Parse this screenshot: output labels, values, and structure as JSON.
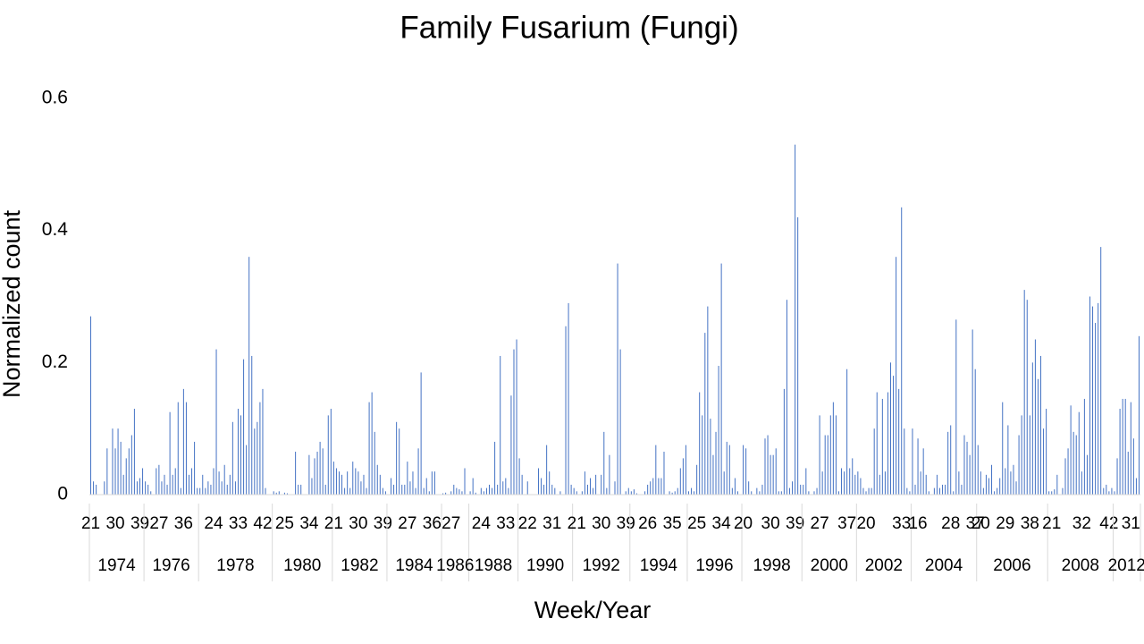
{
  "chart_data": {
    "type": "bar",
    "title": "Family Fusarium (Fungi)",
    "x_label": "Week/Year",
    "y_label": "Normalized count",
    "color": "#4472c4",
    "ylim": [
      0,
      0.6
    ],
    "yticks": [
      0,
      0.2,
      0.4,
      0.6
    ],
    "grid": false,
    "groups": [
      {
        "name": "1974",
        "categories": [
          "21",
          null,
          null,
          null,
          null,
          null,
          null,
          null,
          null,
          "30",
          null,
          null,
          null,
          null,
          null,
          null,
          null,
          null,
          "39",
          null
        ],
        "values": [
          0.27,
          0.02,
          0.015,
          0,
          0,
          0.02,
          0.07,
          0,
          0.1,
          0.07,
          0.1,
          0.08,
          0.03,
          0.055,
          0.07,
          0.09,
          0.13,
          0.02,
          0.025,
          0.04
        ]
      },
      {
        "name": "1976",
        "categories": [
          null,
          null,
          null,
          null,
          null,
          "27",
          null,
          null,
          null,
          null,
          null,
          null,
          null,
          null,
          "36",
          null,
          null,
          null,
          null,
          null
        ],
        "values": [
          0.02,
          0.015,
          0.005,
          0,
          0.04,
          0.045,
          0.02,
          0.03,
          0.015,
          0.125,
          0.03,
          0.04,
          0.14,
          0.01,
          0.16,
          0.14,
          0.03,
          0.04,
          0.08,
          0.01
        ]
      },
      {
        "name": "1978",
        "categories": [
          null,
          null,
          null,
          null,
          null,
          "24",
          null,
          null,
          null,
          null,
          null,
          null,
          null,
          null,
          "33",
          null,
          null,
          null,
          null,
          null,
          null,
          null,
          null,
          "42",
          null,
          null,
          null
        ],
        "values": [
          0.01,
          0.03,
          0.01,
          0.02,
          0.015,
          0.04,
          0.22,
          0.035,
          0.02,
          0.045,
          0.015,
          0.03,
          0.11,
          0.02,
          0.13,
          0.12,
          0.205,
          0.075,
          0.36,
          0.21,
          0.1,
          0.11,
          0.14,
          0.16,
          0.01,
          0,
          0
        ]
      },
      {
        "name": "1980",
        "categories": [
          null,
          null,
          null,
          null,
          "25",
          null,
          null,
          null,
          null,
          null,
          null,
          null,
          null,
          "34",
          null,
          null,
          null,
          null,
          null,
          null,
          null,
          null
        ],
        "values": [
          0.005,
          0.003,
          0.005,
          0,
          0.003,
          0.002,
          0,
          0,
          0.065,
          0.015,
          0.015,
          0,
          0,
          0.06,
          0.025,
          0.055,
          0.065,
          0.08,
          0.07,
          0.015,
          0.12,
          0.13
        ]
      },
      {
        "name": "1982",
        "categories": [
          "21",
          null,
          null,
          null,
          null,
          null,
          null,
          null,
          null,
          "30",
          null,
          null,
          null,
          null,
          null,
          null,
          null,
          null,
          "39",
          null
        ],
        "values": [
          0.05,
          0.04,
          0.035,
          0.03,
          0.01,
          0.035,
          0.01,
          0.05,
          0.04,
          0.035,
          0.02,
          0.03,
          0.01,
          0.14,
          0.155,
          0.095,
          0.045,
          0.03,
          0.01,
          0.005
        ]
      },
      {
        "name": "1984",
        "categories": [
          null,
          null,
          null,
          null,
          null,
          null,
          null,
          "27",
          null,
          null,
          null,
          null,
          null,
          null,
          null,
          null,
          "36",
          null,
          null,
          null
        ],
        "values": [
          0,
          0.025,
          0.015,
          0.11,
          0.1,
          0.015,
          0.015,
          0.05,
          0.02,
          0.035,
          0.01,
          0.07,
          0.185,
          0.01,
          0.025,
          0.005,
          0.035,
          0.035,
          0,
          0
        ]
      },
      {
        "name": "1986",
        "categories": [
          null,
          null,
          null,
          "27",
          null,
          null,
          null,
          null,
          null,
          null
        ],
        "values": [
          0.002,
          0.003,
          0,
          0.005,
          0.015,
          0.01,
          0.008,
          0.005,
          0.04,
          0
        ]
      },
      {
        "name": "1988",
        "categories": [
          null,
          null,
          null,
          null,
          "24",
          null,
          null,
          null,
          null,
          null,
          null,
          null,
          null,
          "33",
          null,
          null,
          null,
          null
        ],
        "values": [
          0.005,
          0.025,
          0.003,
          0,
          0.01,
          0.005,
          0.01,
          0.015,
          0.01,
          0.08,
          0.015,
          0.21,
          0.02,
          0.025,
          0.01,
          0.15,
          0.22,
          0.235
        ]
      },
      {
        "name": "1990",
        "categories": [
          null,
          null,
          null,
          "22",
          null,
          null,
          null,
          null,
          null,
          null,
          null,
          null,
          "31",
          null,
          null,
          null,
          null,
          null,
          null,
          null
        ],
        "values": [
          0.055,
          0.03,
          0,
          0.02,
          0,
          0,
          0,
          0.04,
          0.025,
          0.015,
          0.075,
          0.035,
          0.015,
          0.01,
          0,
          0.005,
          0,
          0.255,
          0.29,
          0.015
        ]
      },
      {
        "name": "1992",
        "categories": [
          null,
          "21",
          null,
          null,
          null,
          null,
          null,
          null,
          null,
          null,
          "30",
          null,
          null,
          null,
          null,
          null,
          null,
          null,
          null,
          "39",
          null
        ],
        "values": [
          0.01,
          0.005,
          0,
          0.005,
          0.035,
          0.015,
          0.025,
          0.01,
          0.03,
          0,
          0.03,
          0.095,
          0.01,
          0.06,
          0,
          0.02,
          0.35,
          0.22,
          0,
          0.005,
          0.01
        ]
      },
      {
        "name": "1994",
        "categories": [
          null,
          null,
          null,
          null,
          null,
          null,
          "26",
          null,
          null,
          null,
          null,
          null,
          null,
          null,
          null,
          "35",
          null,
          null,
          null,
          null,
          null
        ],
        "values": [
          0.005,
          0.008,
          0.002,
          0,
          0,
          0.005,
          0.015,
          0.02,
          0.025,
          0.075,
          0.025,
          0.025,
          0.065,
          0,
          0.005,
          0.003,
          0.005,
          0.01,
          0.04,
          0.055,
          0.075
        ]
      },
      {
        "name": "1996",
        "categories": [
          null,
          null,
          null,
          "25",
          null,
          null,
          null,
          null,
          null,
          null,
          null,
          null,
          "34",
          null,
          null,
          null,
          null,
          null,
          null,
          null
        ],
        "values": [
          0.005,
          0.01,
          0.005,
          0.045,
          0.155,
          0.12,
          0.245,
          0.285,
          0.115,
          0.06,
          0.095,
          0.195,
          0.35,
          0.035,
          0.08,
          0.075,
          0.01,
          0.025,
          0.005,
          0
        ]
      },
      {
        "name": "1998",
        "categories": [
          "20",
          null,
          null,
          null,
          null,
          null,
          null,
          null,
          null,
          null,
          "30",
          null,
          null,
          null,
          null,
          null,
          null,
          null,
          null,
          "39",
          null,
          null
        ],
        "values": [
          0.075,
          0.07,
          0.02,
          0.005,
          0,
          0.01,
          0.005,
          0.015,
          0.085,
          0.09,
          0.06,
          0.06,
          0.07,
          0.005,
          0.005,
          0.16,
          0.295,
          0.01,
          0.02,
          0.53,
          0.42,
          0.015
        ]
      },
      {
        "name": "2000",
        "categories": [
          null,
          null,
          null,
          null,
          null,
          null,
          "27",
          null,
          null,
          null,
          null,
          null,
          null,
          null,
          null,
          null,
          "37",
          null,
          null,
          null
        ],
        "values": [
          0.015,
          0.04,
          0.005,
          0,
          0.005,
          0.01,
          0.12,
          0.035,
          0.09,
          0.09,
          0.12,
          0.14,
          0.12,
          0.005,
          0.04,
          0.035,
          0.19,
          0.04,
          0.055,
          0.03
        ]
      },
      {
        "name": "2002",
        "categories": [
          null,
          null,
          null,
          "20",
          null,
          null,
          null,
          null,
          null,
          null,
          null,
          null,
          null,
          null,
          null,
          null,
          "33",
          null,
          null,
          null
        ],
        "values": [
          0.035,
          0.025,
          0.01,
          0.005,
          0.01,
          0.01,
          0.1,
          0.155,
          0.03,
          0.145,
          0.035,
          0.155,
          0.2,
          0.18,
          0.36,
          0.16,
          0.435,
          0.1,
          0.01,
          0.005
        ]
      },
      {
        "name": "2004",
        "categories": [
          null,
          null,
          "16",
          null,
          null,
          null,
          null,
          null,
          null,
          null,
          null,
          null,
          null,
          null,
          "28",
          null,
          null,
          null,
          null,
          null,
          null,
          null,
          null,
          "37"
        ],
        "values": [
          0.1,
          0.015,
          0.085,
          0.035,
          0.07,
          0.03,
          0.005,
          0,
          0.01,
          0.03,
          0.01,
          0.015,
          0.015,
          0.095,
          0.105,
          0.005,
          0.265,
          0.035,
          0.015,
          0.09,
          0.08,
          0.06,
          0.25,
          0.19
        ]
      },
      {
        "name": "2006",
        "categories": [
          null,
          "20",
          null,
          null,
          null,
          null,
          null,
          null,
          null,
          null,
          "29",
          null,
          null,
          null,
          null,
          null,
          null,
          null,
          null,
          "38",
          null,
          null,
          null,
          null,
          null,
          null
        ],
        "values": [
          0.075,
          0.035,
          0.01,
          0.03,
          0.025,
          0.045,
          0.005,
          0.01,
          0.025,
          0.14,
          0.04,
          0.105,
          0.035,
          0.045,
          0.02,
          0.09,
          0.12,
          0.31,
          0.295,
          0.12,
          0.2,
          0.235,
          0.175,
          0.21,
          0.1,
          0.13
        ]
      },
      {
        "name": "2008",
        "categories": [
          null,
          "21",
          null,
          null,
          null,
          null,
          null,
          null,
          null,
          null,
          null,
          null,
          "32",
          null,
          null,
          null,
          null,
          null,
          null,
          null,
          null,
          null,
          "42",
          null
        ],
        "values": [
          0.005,
          0.005,
          0.008,
          0.03,
          0,
          0.01,
          0.055,
          0.07,
          0.135,
          0.095,
          0.09,
          0.125,
          0.035,
          0.145,
          0.06,
          0.3,
          0.285,
          0.26,
          0.29,
          0.375,
          0.01,
          0.015,
          0.005,
          0.01
        ]
      },
      {
        "name": "2012",
        "categories": [
          null,
          null,
          null,
          null,
          null,
          null,
          "31",
          null,
          null,
          null
        ],
        "values": [
          0.005,
          0.055,
          0.13,
          0.145,
          0.145,
          0.065,
          0.14,
          0.085,
          0.025,
          0.24
        ]
      }
    ]
  }
}
